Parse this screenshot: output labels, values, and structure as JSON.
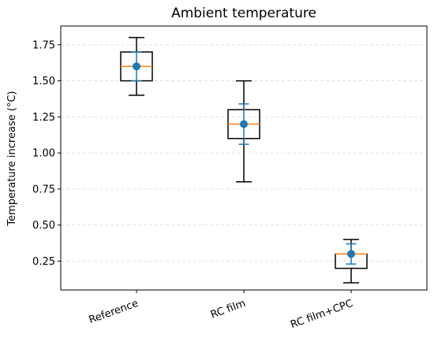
{
  "chart_data": {
    "type": "box",
    "title": "Ambient temperature",
    "xlabel": "",
    "ylabel": "Temperature increase (°C)",
    "categories": [
      "Reference",
      "RC film",
      "RC film+CPC"
    ],
    "ylim": [
      0.05,
      1.88
    ],
    "yticks": [
      0.25,
      0.5,
      0.75,
      1.0,
      1.25,
      1.5,
      1.75
    ],
    "ytick_labels": [
      "0.25",
      "0.50",
      "0.75",
      "1.00",
      "1.25",
      "1.50",
      "1.75"
    ],
    "grid": "y-dashed",
    "boxes": [
      {
        "label": "Reference",
        "whisker_low": 1.4,
        "q1": 1.5,
        "median": 1.6,
        "q3": 1.7,
        "whisker_high": 1.8
      },
      {
        "label": "RC film",
        "whisker_low": 0.8,
        "q1": 1.1,
        "median": 1.2,
        "q3": 1.3,
        "whisker_high": 1.5
      },
      {
        "label": "RC film+CPC",
        "whisker_low": 0.1,
        "q1": 0.2,
        "median": 0.3,
        "q3": 0.3,
        "whisker_high": 0.4
      }
    ],
    "mean_points": [
      {
        "label": "Reference",
        "mean": 1.6,
        "error_low": 1.5,
        "error_high": 1.7
      },
      {
        "label": "RC film",
        "mean": 1.2,
        "error_low": 1.06,
        "error_high": 1.34
      },
      {
        "label": "RC film+CPC",
        "mean": 0.3,
        "error_low": 0.23,
        "error_high": 0.37
      }
    ],
    "colors": {
      "box": "#000000",
      "median": "#ff7f0e",
      "mean": "#1f77b4",
      "grid": "#d9d9d9"
    }
  }
}
